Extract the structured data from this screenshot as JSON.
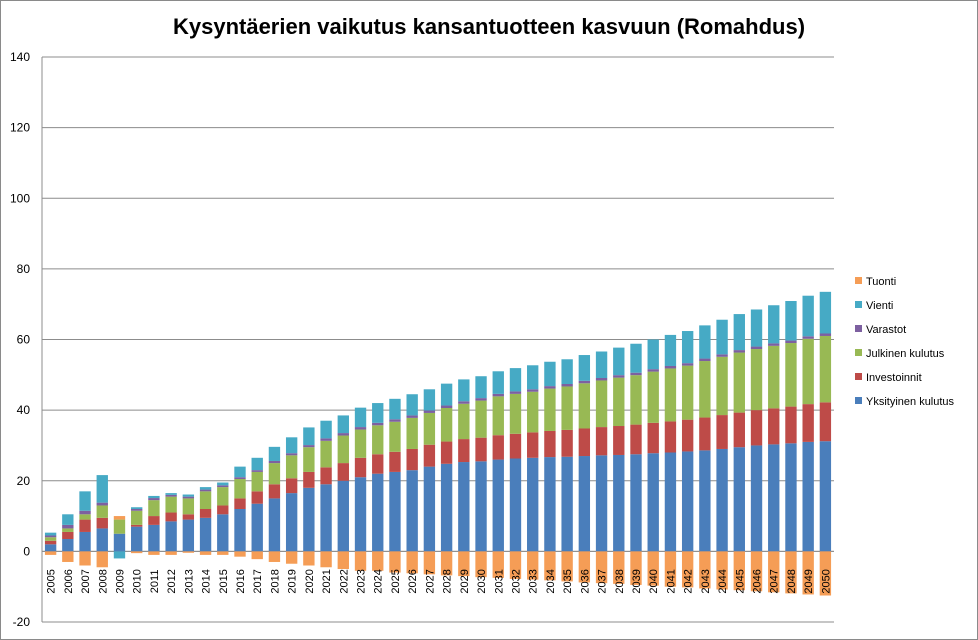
{
  "chart_data": {
    "type": "bar",
    "stacked": true,
    "title": "Kysyntäerien vaikutus kansantuotteen kasvuun (Romahdus)",
    "xlabel": "",
    "ylabel": "",
    "ylim": [
      -20,
      140
    ],
    "yticks": [
      -20,
      0,
      20,
      40,
      60,
      80,
      100,
      120,
      140
    ],
    "grid": true,
    "legend_position": "right",
    "categories": [
      "2005",
      "2006",
      "2007",
      "2008",
      "2009",
      "2010",
      "2011",
      "2012",
      "2013",
      "2014",
      "2015",
      "2016",
      "2017",
      "2018",
      "2019",
      "2020",
      "2021",
      "2022",
      "2023",
      "2024",
      "2025",
      "2026",
      "2027",
      "2028",
      "2029",
      "2030",
      "2031",
      "2032",
      "2033",
      "2034",
      "2035",
      "2036",
      "2037",
      "2038",
      "2039",
      "2040",
      "2041",
      "2042",
      "2043",
      "2044",
      "2045",
      "2046",
      "2047",
      "2048",
      "2049",
      "2050"
    ],
    "series": [
      {
        "name": "Yksityinen kulutus",
        "color": "#4a7ebb",
        "values": [
          2.0,
          3.5,
          5.5,
          6.5,
          5.0,
          7.0,
          7.5,
          8.5,
          9.0,
          9.5,
          10.5,
          12.0,
          13.5,
          15.0,
          16.5,
          18.0,
          19.0,
          20.0,
          21.0,
          22.0,
          22.5,
          23.0,
          24.0,
          24.8,
          25.3,
          25.5,
          26.0,
          26.3,
          26.5,
          26.7,
          26.8,
          27.0,
          27.2,
          27.3,
          27.5,
          27.8,
          28.0,
          28.3,
          28.6,
          29.0,
          29.5,
          30.0,
          30.3,
          30.6,
          31.0,
          31.2
        ]
      },
      {
        "name": "Investoinnit",
        "color": "#be4b48",
        "values": [
          1.0,
          2.0,
          3.5,
          3.0,
          0.0,
          0.5,
          2.5,
          2.5,
          1.5,
          2.5,
          2.5,
          3.0,
          3.5,
          4.0,
          4.2,
          4.5,
          4.8,
          5.0,
          5.5,
          5.5,
          5.7,
          6.0,
          6.2,
          6.3,
          6.5,
          6.7,
          6.9,
          7.0,
          7.2,
          7.4,
          7.6,
          7.8,
          8.0,
          8.2,
          8.4,
          8.6,
          8.8,
          9.0,
          9.3,
          9.6,
          9.8,
          10.0,
          10.2,
          10.4,
          10.7,
          11.0
        ]
      },
      {
        "name": "Julkinen kulutus",
        "color": "#98b954",
        "values": [
          1.0,
          1.0,
          1.5,
          3.5,
          4.0,
          4.0,
          4.5,
          4.5,
          4.5,
          5.0,
          5.2,
          5.5,
          5.5,
          6.0,
          6.5,
          7.0,
          7.5,
          7.8,
          8.0,
          8.2,
          8.5,
          8.8,
          9.0,
          9.5,
          10.0,
          10.5,
          11.0,
          11.3,
          11.5,
          12.0,
          12.3,
          12.8,
          13.2,
          13.7,
          14.0,
          14.5,
          15.0,
          15.3,
          16.0,
          16.5,
          17.0,
          17.3,
          17.7,
          18.0,
          18.5,
          18.8
        ]
      },
      {
        "name": "Varastot",
        "color": "#7d60a0",
        "values": [
          0.5,
          1.0,
          1.0,
          0.8,
          0.0,
          0.5,
          0.6,
          0.5,
          0.5,
          0.5,
          0.5,
          0.5,
          0.5,
          0.6,
          0.6,
          0.6,
          0.7,
          0.7,
          0.7,
          0.7,
          0.7,
          0.7,
          0.7,
          0.7,
          0.7,
          0.7,
          0.7,
          0.7,
          0.7,
          0.7,
          0.7,
          0.7,
          0.7,
          0.7,
          0.7,
          0.7,
          0.7,
          0.7,
          0.7,
          0.7,
          0.7,
          0.7,
          0.7,
          0.7,
          0.7,
          0.7
        ]
      },
      {
        "name": "Vienti",
        "color": "#46aac5",
        "values": [
          0.8,
          3.0,
          5.5,
          7.8,
          -2.0,
          0.5,
          0.6,
          0.5,
          0.6,
          0.7,
          0.8,
          3.0,
          3.5,
          4.0,
          4.5,
          5.0,
          5.0,
          5.0,
          5.5,
          5.6,
          5.8,
          6.0,
          6.0,
          6.2,
          6.2,
          6.2,
          6.4,
          6.6,
          6.8,
          6.9,
          7.0,
          7.3,
          7.5,
          7.8,
          8.2,
          8.4,
          8.8,
          9.1,
          9.4,
          9.8,
          10.2,
          10.5,
          10.8,
          11.2,
          11.5,
          11.8
        ]
      },
      {
        "name": "Tuonti",
        "color": "#f59d56",
        "values": [
          -1.0,
          -3.0,
          -4.0,
          -4.5,
          1.0,
          -0.5,
          -1.0,
          -1.0,
          -0.4,
          -1.0,
          -1.0,
          -1.5,
          -2.2,
          -3.0,
          -3.5,
          -4.0,
          -4.5,
          -5.0,
          -5.5,
          -5.5,
          -6.0,
          -6.2,
          -6.5,
          -6.8,
          -7.0,
          -7.3,
          -7.5,
          -7.8,
          -8.0,
          -8.2,
          -8.5,
          -8.8,
          -9.0,
          -9.2,
          -9.5,
          -9.7,
          -10.0,
          -10.2,
          -10.5,
          -10.8,
          -11.0,
          -11.3,
          -11.6,
          -11.9,
          -12.2,
          -12.5
        ]
      }
    ],
    "legend_order": [
      "Tuonti",
      "Vienti",
      "Varastot",
      "Julkinen kulutus",
      "Investoinnit",
      "Yksityinen kulutus"
    ]
  }
}
